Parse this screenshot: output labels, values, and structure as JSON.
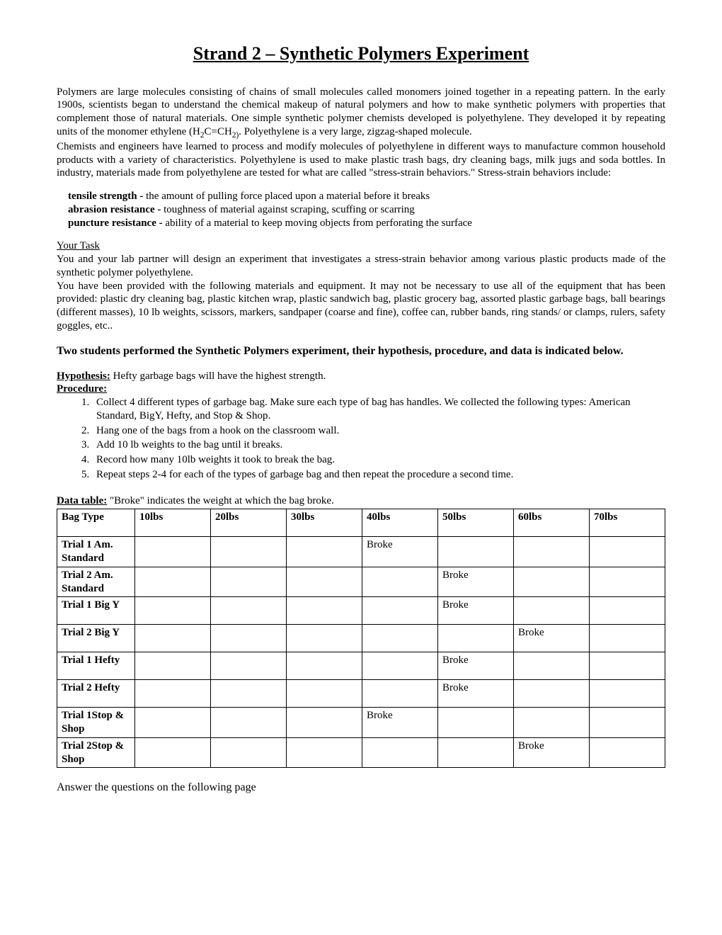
{
  "title": "Strand 2 – Synthetic Polymers Experiment",
  "intro_p1": "Polymers are large molecules consisting of chains of small molecules called monomers joined together in a repeating pattern.  In the early 1900s, scientists began to understand the chemical makeup of natural polymers and how to make synthetic polymers with properties that complement those of natural materials.  One simple synthetic polymer chemists developed is polyethylene.  They developed it by repeating units of the monomer ethylene (H",
  "intro_p1_tail": ".  Polyethylene is a very large, zigzag-shaped molecule.",
  "intro_p2": "Chemists and engineers have learned to process and modify molecules of polyethylene in different ways to manufacture common household products with a variety of characteristics.  Polyethylene is used to make plastic trash bags, dry cleaning bags, milk jugs and soda bottles.  In industry, materials made from polyethylene are tested for what are called \"stress-strain behaviors.\"  Stress-strain behaviors include:",
  "defs": {
    "tensile_label": "tensile strength - ",
    "tensile_text": "the amount of pulling force placed upon a material before it breaks",
    "abrasion_label": "abrasion resistance - ",
    "abrasion_text": "toughness of material against scraping, scuffing or scarring",
    "puncture_label": "puncture resistance - ",
    "puncture_text": "ability of a material to keep moving objects from perforating the surface"
  },
  "task_heading": "Your Task",
  "task_p1": "You and your lab partner will design an experiment that investigates a stress-strain behavior among various plastic products made of the synthetic polymer polyethylene.",
  "task_p2": "You have been provided with the following materials and equipment.  It may not be necessary to use all of the equipment that has been provided: plastic dry cleaning bag, plastic kitchen wrap, plastic sandwich bag, plastic grocery bag, assorted plastic garbage bags, ball bearings (different masses), 10 lb weights, scissors, markers, sandpaper (coarse and fine), coffee can, rubber bands, ring stands/ or clamps, rulers, safety goggles, etc..",
  "students_note": "Two students performed the Synthetic Polymers experiment, their hypothesis, procedure, and data is indicated below.",
  "hypothesis_label": "Hypothesis:",
  "hypothesis_text": " Hefty garbage bags will have the highest strength.",
  "procedure_label": "Procedure:",
  "procedure_steps": [
    "Collect 4 different types of garbage bag. Make sure each type of bag has handles.  We collected the following types: American Standard, BigY, Hefty, and Stop & Shop.",
    "Hang one of the bags from a hook on the classroom wall.",
    "Add 10 lb weights to the bag until it breaks.",
    "Record how many 10lb weights it took to break the bag.",
    "Repeat steps 2-4 for each of the types of garbage bag and then repeat the procedure a second time."
  ],
  "datatable_label": "Data table:",
  "datatable_caption": "  \"Broke\" indicates the weight at which the bag broke.",
  "columns": [
    "Bag Type",
    "10lbs",
    "20lbs",
    "30lbs",
    "40lbs",
    "50lbs",
    "60lbs",
    "70lbs"
  ],
  "rows": [
    {
      "label": "Trial 1 Am. Standard",
      "broke_col": 4
    },
    {
      "label": "Trial 2 Am. Standard",
      "broke_col": 5
    },
    {
      "label": "Trial 1 Big Y",
      "broke_col": 5
    },
    {
      "label": "Trial 2 Big Y",
      "broke_col": 6
    },
    {
      "label": "Trial 1 Hefty",
      "broke_col": 5
    },
    {
      "label": "Trial 2 Hefty",
      "broke_col": 5
    },
    {
      "label": "Trial 1Stop & Shop",
      "broke_col": 4
    },
    {
      "label": "Trial 2Stop & Shop",
      "broke_col": 6
    }
  ],
  "broke_text": "Broke",
  "footer_q": "Answer the questions on the following page"
}
